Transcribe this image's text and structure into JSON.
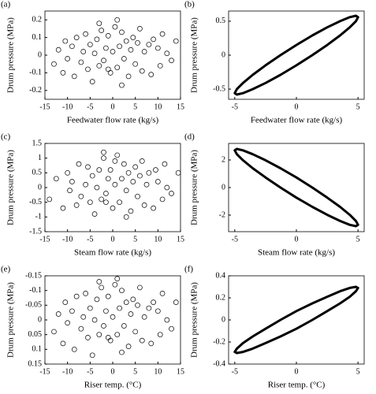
{
  "chart_data": [
    {
      "type": "scatter",
      "label": "(a)",
      "xlabel": "Feedwater flow rate (kg/s)",
      "ylabel": "Drum pressure (MPa)",
      "color": "#000000",
      "xlim": [
        -15,
        15
      ],
      "xticks": [
        -15,
        -10,
        -5,
        0,
        5,
        10,
        15
      ],
      "ylim": [
        -0.25,
        0.25
      ],
      "yticks": [
        -0.2,
        -0.1,
        0,
        0.1,
        0.2
      ],
      "x": [
        -13,
        -12,
        -11,
        -10.5,
        -10,
        -9,
        -8.5,
        -8,
        -7,
        -6.5,
        -6,
        -5.5,
        -5,
        -4.5,
        -4,
        -3.5,
        -3,
        -2.5,
        -2,
        -1.5,
        -1,
        -0.5,
        0,
        0.5,
        1,
        1.5,
        2,
        2.5,
        3,
        3.5,
        4,
        4.5,
        5,
        5.5,
        6,
        6.5,
        7,
        8,
        8.5,
        9,
        10,
        10.5,
        11,
        12,
        13,
        14,
        -3,
        2,
        -1,
        1
      ],
      "values": [
        -0.05,
        0.03,
        -0.1,
        0.08,
        -0.02,
        0.05,
        -0.12,
        0.1,
        -0.04,
        0.02,
        0.12,
        -0.08,
        0.06,
        -0.15,
        0.01,
        0.09,
        -0.06,
        0.14,
        -0.03,
        0.04,
        0.11,
        -0.1,
        0.02,
        0.16,
        -0.07,
        0.05,
        0.13,
        -0.02,
        0.08,
        -0.12,
        0.03,
        0.1,
        -0.05,
        0.07,
        0.15,
        -0.09,
        0.02,
        0.06,
        -0.11,
        0.09,
        0.04,
        -0.06,
        0.12,
        0.01,
        -0.03,
        0.08,
        0.18,
        -0.17,
        -0.08,
        0.2
      ]
    },
    {
      "type": "line",
      "label": "(b)",
      "xlabel": "Feedwater flow rate (kg/s)",
      "ylabel": "Drum pressure (MPa)",
      "color": "#000000",
      "xlim": [
        -5.5,
        5.5
      ],
      "xticks": [
        -5,
        0,
        5
      ],
      "ylim": [
        -0.65,
        0.65
      ],
      "yticks": [
        -0.5,
        0,
        0.5
      ],
      "x": [
        5,
        4.83,
        4.33,
        3.54,
        2.5,
        1.29,
        0,
        -1.29,
        -2.5,
        -3.54,
        -4.33,
        -4.83,
        -5,
        -4.83,
        -4.33,
        -3.54,
        -2.5,
        -1.29,
        0,
        1.29,
        2.5,
        3.54,
        4.33,
        4.83
      ],
      "values": [
        0.56,
        0.58,
        0.56,
        0.5,
        0.41,
        0.29,
        0.15,
        0,
        -0.15,
        -0.29,
        -0.41,
        -0.5,
        -0.56,
        -0.58,
        -0.56,
        -0.5,
        -0.41,
        -0.29,
        -0.15,
        0,
        0.15,
        0.29,
        0.41,
        0.5
      ]
    },
    {
      "type": "scatter",
      "label": "(c)",
      "xlabel": "Steam flow rate (kg/s)",
      "ylabel": "Drum pressure (MPa)",
      "color": "#000000",
      "xlim": [
        -15,
        15
      ],
      "xticks": [
        -15,
        -10,
        -5,
        0,
        5,
        10,
        15
      ],
      "ylim": [
        -1.5,
        1.5
      ],
      "yticks": [
        -1.5,
        -1,
        -0.5,
        0,
        0.5,
        1,
        1.5
      ],
      "x": [
        -14,
        -12.5,
        -11,
        -10,
        -9.5,
        -9,
        -8,
        -7.5,
        -7,
        -6,
        -5.5,
        -5,
        -4.5,
        -4,
        -3.5,
        -3,
        -2.5,
        -2,
        -1.5,
        -1,
        -0.5,
        0,
        0.5,
        1,
        1.5,
        2,
        2.5,
        3,
        3.5,
        4,
        4.5,
        5,
        5.5,
        6,
        6.5,
        7,
        7.5,
        8,
        9,
        9.5,
        10,
        11,
        11.5,
        12,
        13,
        14.5,
        -2,
        3,
        -1.5,
        0.5
      ],
      "values": [
        -0.4,
        0.3,
        -0.7,
        0.5,
        -0.1,
        0.2,
        -0.6,
        0.8,
        -0.3,
        0.1,
        0.7,
        -0.5,
        0.4,
        -0.9,
        0,
        0.6,
        -0.4,
        1.0,
        -0.2,
        0.3,
        0.6,
        -0.7,
        0.1,
        1.1,
        -0.5,
        0.3,
        0.8,
        -0.1,
        0.5,
        -0.8,
        0.2,
        0.7,
        -0.3,
        0.4,
        0.9,
        -0.6,
        0.1,
        0.5,
        -0.7,
        0.6,
        0.2,
        -0.4,
        0.8,
        0,
        -0.2,
        0.5,
        1.2,
        -1.0,
        -0.5,
        0.9
      ]
    },
    {
      "type": "line",
      "label": "(d)",
      "xlabel": "Steam flow rate (kg/s)",
      "ylabel": "Drum pressure (MPa)",
      "color": "#000000",
      "xlim": [
        -5.5,
        5.5
      ],
      "xticks": [
        -5,
        0,
        5
      ],
      "ylim": [
        -3.2,
        3.2
      ],
      "yticks": [
        -2,
        0,
        2
      ],
      "x": [
        5,
        4.83,
        4.33,
        3.54,
        2.5,
        1.29,
        0,
        -1.29,
        -2.5,
        -3.54,
        -4.33,
        -4.83,
        -5,
        -4.83,
        -4.33,
        -3.54,
        -2.5,
        -1.29,
        0,
        1.29,
        2.5,
        3.54,
        4.33,
        4.83
      ],
      "values": [
        -2.7,
        -2.8,
        -2.7,
        -2.42,
        -1.98,
        -1.4,
        -0.73,
        0,
        0.73,
        1.4,
        1.98,
        2.42,
        2.7,
        2.8,
        2.7,
        2.42,
        1.98,
        1.4,
        0.73,
        0,
        -0.73,
        -1.4,
        -1.98,
        -2.42
      ]
    },
    {
      "type": "scatter",
      "label": "(e)",
      "xlabel": "Riser temp. (°C)",
      "ylabel": "Drum pressure (MPa)",
      "color": "#000000",
      "xlim": [
        -15,
        15
      ],
      "xticks": [
        -15,
        -10,
        -5,
        0,
        5,
        10,
        15
      ],
      "ylim": [
        0.15,
        -0.15
      ],
      "yticks": [
        -0.15,
        -0.1,
        -0.05,
        0,
        0.05,
        0.1,
        0.15
      ],
      "x": [
        -13,
        -12,
        -11,
        -10.5,
        -10,
        -9,
        -8.5,
        -8,
        -7,
        -6.5,
        -6,
        -5.5,
        -5,
        -4.5,
        -4,
        -3.5,
        -3,
        -2.5,
        -2,
        -1.5,
        -1,
        -0.5,
        0,
        0.5,
        1,
        1.5,
        2,
        2.5,
        3,
        3.5,
        4,
        4.5,
        5,
        5.5,
        6,
        6.5,
        7,
        8,
        8.5,
        9,
        10,
        10.5,
        11,
        12,
        13,
        14,
        -3,
        2,
        -1,
        1
      ],
      "values": [
        0.04,
        -0.02,
        0.08,
        -0.06,
        0.01,
        -0.03,
        0.1,
        -0.08,
        0.03,
        -0.01,
        -0.09,
        0.06,
        -0.04,
        0.12,
        0,
        -0.07,
        0.05,
        -0.11,
        0.02,
        -0.03,
        -0.08,
        0.07,
        -0.01,
        -0.12,
        0.05,
        -0.04,
        -0.1,
        0.02,
        -0.06,
        0.09,
        -0.02,
        -0.07,
        0.04,
        -0.05,
        -0.11,
        0.07,
        -0.01,
        -0.04,
        0.08,
        -0.06,
        -0.03,
        0.05,
        -0.09,
        0,
        0.03,
        -0.06,
        -0.13,
        0.11,
        0.06,
        -0.14
      ]
    },
    {
      "type": "line",
      "label": "(f)",
      "xlabel": "Riser temp. (°C)",
      "ylabel": "Drum pressure (MPa)",
      "color": "#000000",
      "xlim": [
        -5.5,
        5.5
      ],
      "xticks": [
        -5,
        0,
        5
      ],
      "ylim": [
        -0.4,
        0.4
      ],
      "yticks": [
        -0.4,
        -0.2,
        0,
        0.2,
        0.4
      ],
      "x": [
        5,
        4.83,
        4.33,
        3.54,
        2.5,
        1.29,
        0,
        -1.29,
        -2.5,
        -3.54,
        -4.33,
        -4.83,
        -5,
        -4.83,
        -4.33,
        -3.54,
        -2.5,
        -1.29,
        0,
        1.29,
        2.5,
        3.54,
        4.33,
        4.83
      ],
      "values": [
        0.29,
        0.3,
        0.29,
        0.26,
        0.21,
        0.15,
        0.08,
        0,
        -0.08,
        -0.15,
        -0.21,
        -0.26,
        -0.29,
        -0.3,
        -0.29,
        -0.26,
        -0.21,
        -0.15,
        -0.08,
        0,
        0.08,
        0.15,
        0.21,
        0.26
      ]
    }
  ]
}
